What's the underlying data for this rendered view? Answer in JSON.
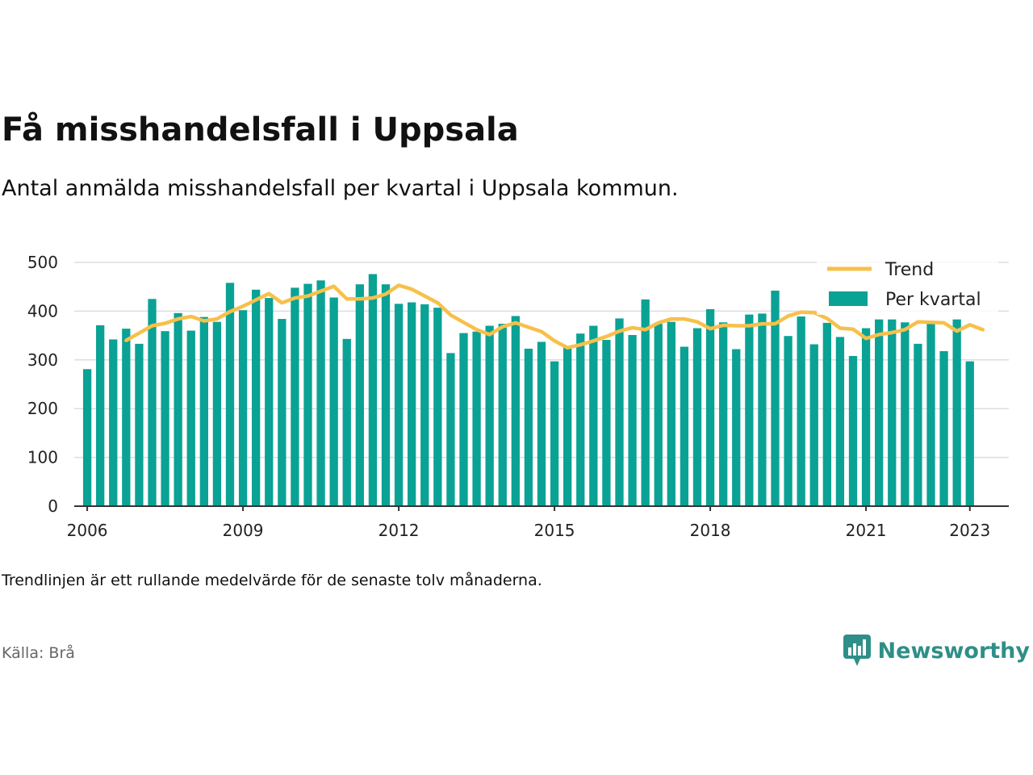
{
  "header": {
    "title": "Få misshandelsfall i Uppsala",
    "subtitle": "Antal anmälda misshandelsfall per kvartal i Uppsala kommun."
  },
  "footer": {
    "note": "Trendlinjen är ett rullande medelvärde för de senaste tolv månaderna.",
    "source": "Källa: Brå",
    "brand": "Newsworthy"
  },
  "colors": {
    "bars": "#0aa295",
    "trend": "#f7c04a",
    "grid": "#dddddd",
    "axis": "#333333"
  },
  "chart_data": {
    "type": "bar",
    "xlim": [
      2005.75,
      2023.75
    ],
    "ylim": [
      0,
      500
    ],
    "y_ticks": [
      0,
      100,
      200,
      300,
      400,
      500
    ],
    "x_ticks": [
      2006,
      2009,
      2012,
      2015,
      2018,
      2021,
      2023
    ],
    "grid": true,
    "legend_position": "top-right",
    "series": [
      {
        "name": "Per kvartal",
        "type": "bar",
        "start": "2006-Q1",
        "values": [
          281,
          371,
          342,
          364,
          333,
          425,
          359,
          396,
          360,
          388,
          378,
          458,
          402,
          444,
          427,
          384,
          448,
          456,
          463,
          428,
          343,
          455,
          476,
          455,
          415,
          418,
          414,
          407,
          314,
          355,
          358,
          370,
          374,
          390,
          323,
          337,
          297,
          327,
          354,
          370,
          341,
          385,
          351,
          424,
          374,
          378,
          327,
          365,
          404,
          377,
          322,
          393,
          395,
          442,
          349,
          389,
          332,
          376,
          347,
          308,
          365,
          383,
          383,
          377,
          333,
          380,
          318,
          383,
          297
        ]
      },
      {
        "name": "Trend",
        "type": "line",
        "start": "2006-Q4",
        "values": [
          340,
          355,
          370,
          375,
          384,
          389,
          380,
          384,
          399,
          410,
          423,
          436,
          417,
          427,
          431,
          441,
          451,
          425,
          425,
          427,
          435,
          453,
          445,
          431,
          417,
          392,
          377,
          362,
          352,
          368,
          376,
          367,
          358,
          339,
          325,
          331,
          339,
          348,
          359,
          366,
          362,
          376,
          384,
          384,
          378,
          364,
          371,
          370,
          370,
          374,
          374,
          390,
          398,
          397,
          385,
          365,
          363,
          344,
          352,
          356,
          362,
          378,
          377,
          376,
          359,
          372,
          362
        ]
      }
    ]
  }
}
